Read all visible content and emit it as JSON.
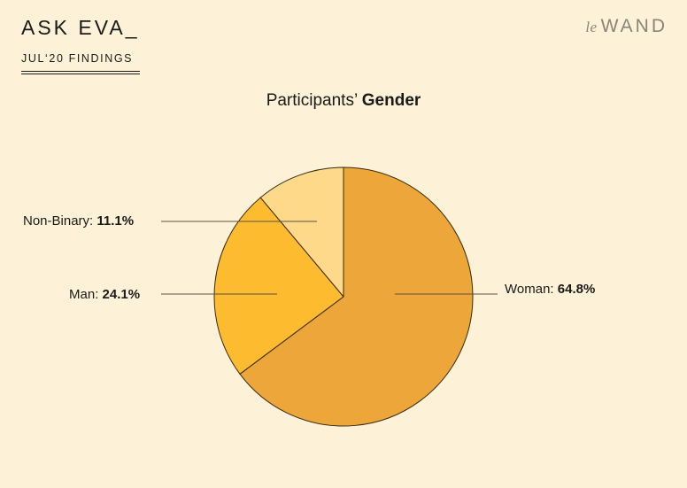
{
  "header": {
    "title": "ASK EVA_",
    "subtitle": "JUL‘20 FINDINGS",
    "logo_prefix": "le",
    "logo_main": "WAND"
  },
  "chart_data": {
    "type": "pie",
    "title_prefix": "Participants’",
    "title_bold": "Gender",
    "slices": [
      {
        "name": "Woman",
        "value": 64.8,
        "label": "64.8%",
        "color": "#eca63a"
      },
      {
        "name": "Man",
        "value": 24.1,
        "label": "24.1%",
        "color": "#fdbc30"
      },
      {
        "name": "Non-Binary",
        "value": 11.1,
        "label": "11.1%",
        "color": "#fed98a"
      }
    ],
    "start": "12 o'clock",
    "direction": "clockwise",
    "legend": "none"
  }
}
